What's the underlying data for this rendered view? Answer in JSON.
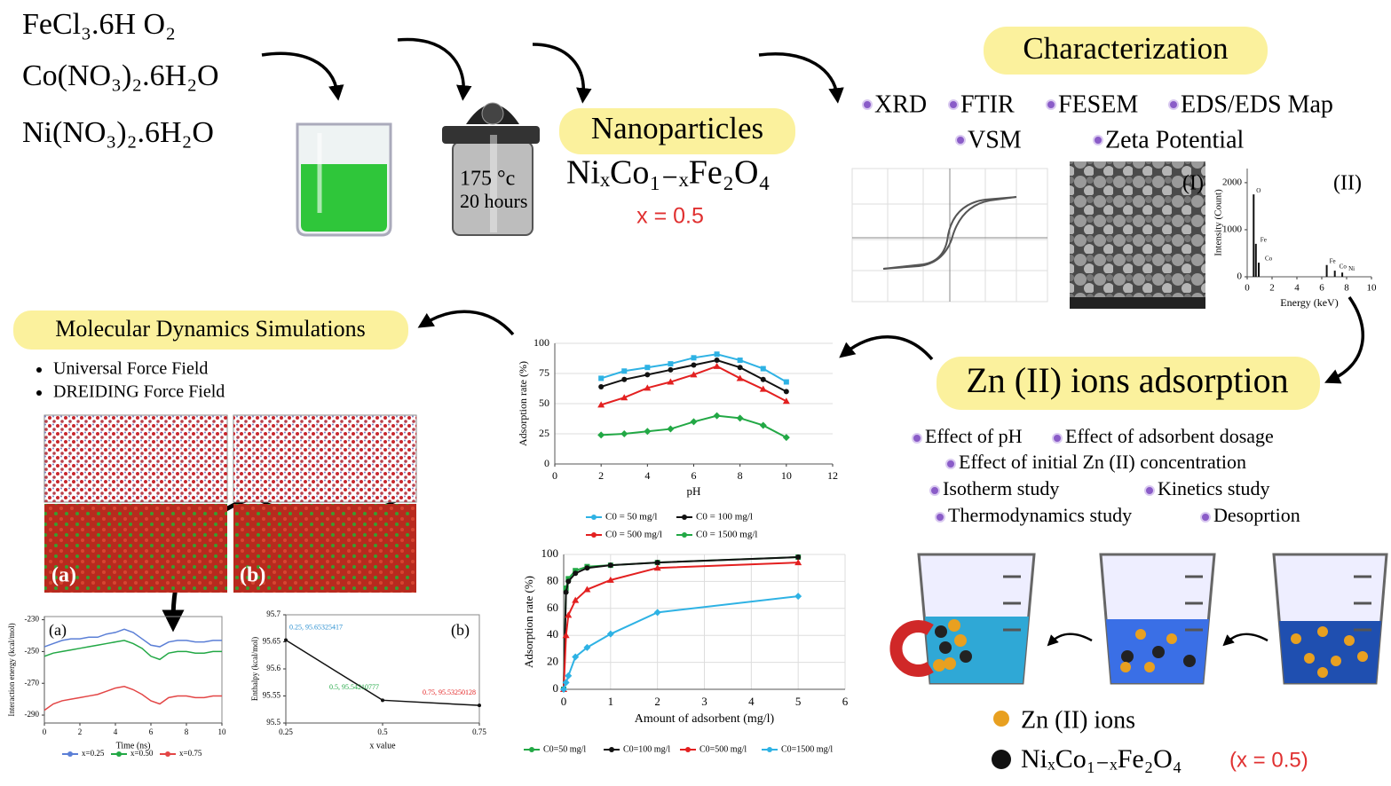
{
  "precursors": [
    "FeCl₃.6H O₂",
    "Co(NO₃)₂.6H₂O",
    "Ni(NO₃)₂.6H₂O"
  ],
  "autoclave": {
    "temperature": "175 °c",
    "time": "20 hours"
  },
  "nanoparticles": {
    "title": "Nanoparticles",
    "formula": "NiₓCo₁₋ₓFe₂O₄",
    "x": "x = 0.5"
  },
  "characterization": {
    "title": "Characterization",
    "methods": [
      "XRD",
      "FTIR",
      "FESEM",
      "EDS/EDS Map",
      "VSM",
      "Zeta Potential"
    ],
    "panels": [
      "(I)",
      "(II)"
    ]
  },
  "adsorption": {
    "title": "Zn (II) ions adsorption",
    "studies": [
      "Effect of pH",
      "Effect of adsorbent dosage",
      "Effect of initial Zn (II) concentration",
      "Isotherm study",
      "Kinetics study",
      "Thermodynamics study",
      "Desoprtion"
    ],
    "legend": [
      "Zn (II) ions",
      "NiₓCo₁₋ₓFe₂O₄",
      "(x = 0.5)"
    ]
  },
  "md": {
    "title": "Molecular Dynamics Simulations",
    "force_fields": [
      "Universal Force Field",
      "DREIDING Force Field"
    ],
    "panels": [
      "(a)",
      "(b)"
    ]
  },
  "charts": {
    "eds": {
      "type": "bar",
      "xlabel": "Energy (keV)",
      "ylabel": "Intensity (Count)",
      "x": [
        0.52,
        0.7,
        0.93,
        6.4,
        7.05,
        7.65
      ],
      "values": [
        1750,
        700,
        300,
        250,
        130,
        90
      ],
      "peak_labels": [
        "O",
        "Fe",
        "Co",
        "Fe",
        "Co",
        "Ni"
      ],
      "color": "#111111",
      "xlim": [
        0,
        10
      ],
      "ylim": [
        0,
        2300
      ],
      "xticks": [
        0,
        2,
        4,
        6,
        8,
        10
      ],
      "yticks": [
        0,
        1000,
        2000
      ],
      "grid": false
    },
    "ph": {
      "type": "line",
      "xlabel": "pH",
      "ylabel": "Adsorption rate (%)",
      "x": [
        2,
        3,
        4,
        5,
        6,
        7,
        8,
        9,
        10
      ],
      "series": [
        {
          "name": "C0 = 50 mg/l",
          "color": "#2eb2e4",
          "values": [
            71,
            77,
            80,
            83,
            88,
            91,
            86,
            79,
            68
          ]
        },
        {
          "name": "C0 = 100 mg/l",
          "color": "#111111",
          "values": [
            64,
            70,
            74,
            78,
            82,
            86,
            80,
            70,
            60
          ]
        },
        {
          "name": "C0 = 500 mg/l",
          "color": "#e32020",
          "values": [
            49,
            55,
            63,
            68,
            74,
            81,
            71,
            62,
            52
          ]
        },
        {
          "name": "C0 = 1500 mg/l",
          "color": "#22a845",
          "values": [
            24,
            25,
            27,
            29,
            35,
            40,
            38,
            32,
            22
          ]
        }
      ],
      "xlim": [
        0,
        12
      ],
      "ylim": [
        0,
        100
      ],
      "xticks": [
        0,
        2,
        4,
        6,
        8,
        10,
        12
      ],
      "yticks": [
        0,
        25,
        50,
        75,
        100
      ],
      "grid": true
    },
    "dosage": {
      "type": "line",
      "xlabel": "Amount of adsorbent (mg/l)",
      "ylabel": "Adsorption rate (%)",
      "x": [
        0,
        0.05,
        0.1,
        0.25,
        0.5,
        1,
        2,
        5
      ],
      "series": [
        {
          "name": "C0=50 mg/l",
          "color": "#22a845",
          "values": [
            0,
            75,
            82,
            88,
            91,
            92,
            94,
            98
          ]
        },
        {
          "name": "C0=100 mg/l",
          "color": "#111111",
          "values": [
            0,
            72,
            80,
            86,
            90,
            92,
            94,
            98
          ]
        },
        {
          "name": "C0=500 mg/l",
          "color": "#e32020",
          "values": [
            0,
            40,
            55,
            66,
            74,
            81,
            90,
            94
          ]
        },
        {
          "name": "C0=1500 mg/l",
          "color": "#2eb2e4",
          "values": [
            0,
            5,
            10,
            24,
            31,
            41,
            57,
            69
          ]
        }
      ],
      "xlim": [
        0,
        6
      ],
      "ylim": [
        0,
        100
      ],
      "xticks": [
        0,
        1,
        2,
        3,
        4,
        5,
        6
      ],
      "yticks": [
        0,
        20,
        40,
        60,
        80,
        100
      ],
      "grid": true
    },
    "energy": {
      "type": "line",
      "panel": "(a)",
      "xlabel": "Time (ns)",
      "ylabel": "Interaction energy (kcal/mol)",
      "x": [
        0,
        0.5,
        1,
        1.5,
        2,
        2.5,
        3,
        3.5,
        4,
        4.5,
        5,
        5.5,
        6,
        6.5,
        7,
        7.5,
        8,
        8.5,
        9,
        9.5,
        10
      ],
      "series": [
        {
          "name": "x=0.25",
          "color": "#5b7fd6",
          "values": [
            -247,
            -245,
            -243,
            -242,
            -242,
            -241,
            -241,
            -239,
            -238,
            -236,
            -238,
            -242,
            -246,
            -247,
            -244,
            -243,
            -243,
            -244,
            -244,
            -243,
            -243
          ]
        },
        {
          "name": "x=0.50",
          "color": "#22a845",
          "values": [
            -253,
            -251,
            -250,
            -249,
            -248,
            -247,
            -246,
            -245,
            -244,
            -243,
            -245,
            -248,
            -253,
            -255,
            -251,
            -250,
            -250,
            -251,
            -251,
            -250,
            -250
          ]
        },
        {
          "name": "x=0.75",
          "color": "#e34646",
          "values": [
            -287,
            -283,
            -281,
            -280,
            -279,
            -278,
            -277,
            -275,
            -273,
            -272,
            -274,
            -277,
            -281,
            -283,
            -279,
            -278,
            -278,
            -279,
            -279,
            -278,
            -278
          ]
        }
      ],
      "xlim": [
        0,
        10
      ],
      "ylim": [
        -295,
        -228
      ],
      "xticks": [
        0,
        2,
        4,
        6,
        8,
        10
      ],
      "yticks": [
        -230,
        -250,
        -270,
        -290
      ],
      "grid": false
    },
    "enthalpy": {
      "type": "line",
      "panel": "(b)",
      "xlabel": "x value",
      "ylabel": "Enthalpy (kcal/mol)",
      "x": [
        0.25,
        0.5,
        0.75
      ],
      "series": [
        {
          "name": null,
          "color": "#111111",
          "values": [
            95.65325417,
            95.54210777,
            95.53250128
          ],
          "value_labels": [
            "0.25, 95.65325417",
            "0.5, 95.54210777",
            "0.75, 95.53250128"
          ],
          "label_colors": [
            "#2a8fd0",
            "#22a845",
            "#e32020"
          ]
        }
      ],
      "xlim": [
        0.25,
        0.75
      ],
      "ylim": [
        95.5,
        95.7
      ],
      "xticks": [
        0.25,
        0.5,
        0.75
      ],
      "yticks": [
        95.5,
        95.55,
        95.6,
        95.65,
        95.7
      ],
      "grid": false
    }
  }
}
